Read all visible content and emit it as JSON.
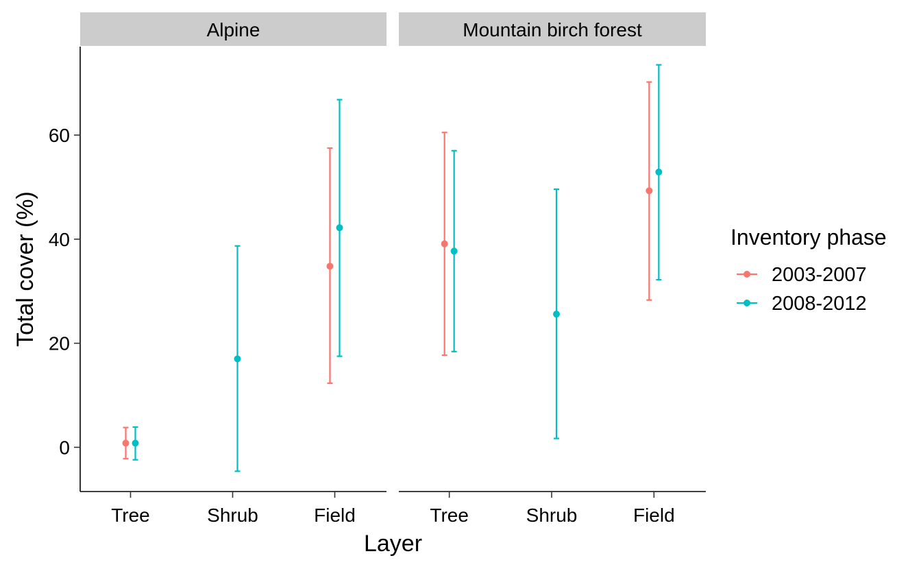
{
  "chart_data": {
    "type": "errorbar",
    "xlabel": "Layer",
    "ylabel": "Total cover (%)",
    "categories": [
      "Tree",
      "Shrub",
      "Field"
    ],
    "ylim": [
      -8.5,
      77
    ],
    "yticks": [
      0,
      20,
      40,
      60
    ],
    "legend": {
      "title": "Inventory phase",
      "position": "right",
      "entries": [
        "2003-2007",
        "2008-2012"
      ]
    },
    "colors": {
      "2003-2007": "#F8766D",
      "2008-2012": "#00BFC4"
    },
    "grid": false,
    "panels": [
      {
        "title": "Alpine",
        "series": [
          {
            "name": "2003-2007",
            "points": [
              {
                "x": "Tree",
                "y": 0.8,
                "lower": -2.2,
                "upper": 3.8
              }
            ]
          },
          {
            "name": "2008-2012",
            "points": [
              {
                "x": "Tree",
                "y": 0.8,
                "lower": -2.4,
                "upper": 3.9
              },
              {
                "x": "Shrub",
                "y": 17.0,
                "lower": -4.6,
                "upper": 38.7
              },
              {
                "x": "Field",
                "y": 42.2,
                "lower": 17.5,
                "upper": 66.8
              }
            ]
          },
          {
            "name": "2003-2007",
            "points": [
              {
                "x": "Field",
                "y": 34.8,
                "lower": 12.3,
                "upper": 57.5
              }
            ]
          }
        ]
      },
      {
        "title": "Mountain birch forest",
        "series": [
          {
            "name": "2003-2007",
            "points": [
              {
                "x": "Tree",
                "y": 39.1,
                "lower": 17.7,
                "upper": 60.5
              },
              {
                "x": "Field",
                "y": 49.3,
                "lower": 28.3,
                "upper": 70.2
              }
            ]
          },
          {
            "name": "2008-2012",
            "points": [
              {
                "x": "Tree",
                "y": 37.7,
                "lower": 18.4,
                "upper": 57.0
              },
              {
                "x": "Shrub",
                "y": 25.6,
                "lower": 1.7,
                "upper": 49.6
              },
              {
                "x": "Field",
                "y": 52.9,
                "lower": 32.2,
                "upper": 73.5
              }
            ]
          }
        ]
      }
    ]
  }
}
